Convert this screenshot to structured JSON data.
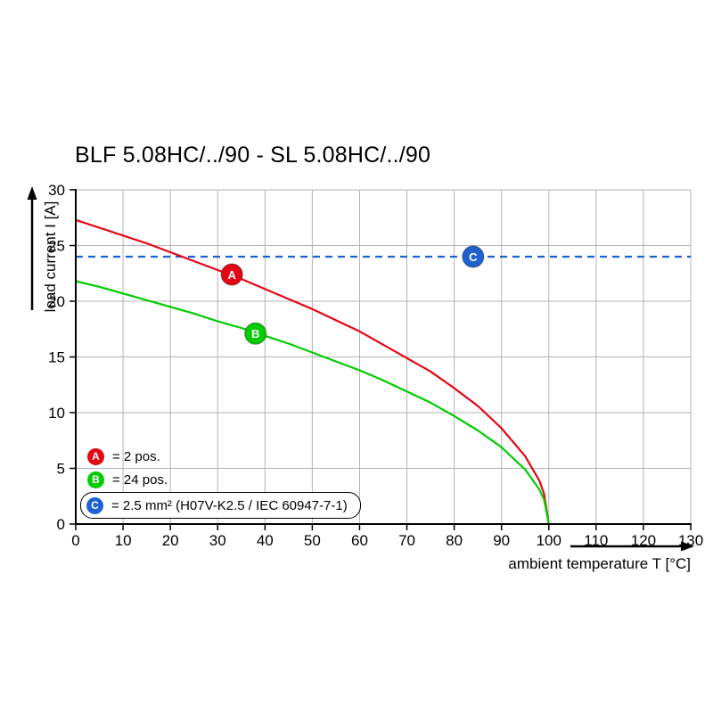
{
  "title": "BLF 5.08HC/../90 - SL 5.08HC/../90",
  "chart_data": {
    "type": "line",
    "title": "BLF 5.08HC/../90 - SL 5.08HC/../90",
    "xlabel": "ambient temperature T [°C]",
    "ylabel": "load current I [A]",
    "xlim": [
      0,
      130
    ],
    "ylim": [
      0,
      30
    ],
    "xticks": [
      0,
      10,
      20,
      30,
      40,
      50,
      60,
      70,
      80,
      90,
      100,
      110,
      120,
      130
    ],
    "yticks": [
      0,
      5,
      10,
      15,
      20,
      25,
      30
    ],
    "grid": true,
    "series": [
      {
        "id": "A",
        "label": "= 2 pos.",
        "color": "#e30613",
        "style": "solid",
        "points": [
          [
            0,
            27.3
          ],
          [
            5,
            26.6
          ],
          [
            10,
            25.9
          ],
          [
            15,
            25.2
          ],
          [
            20,
            24.4
          ],
          [
            25,
            23.6
          ],
          [
            30,
            22.8
          ],
          [
            35,
            22.0
          ],
          [
            40,
            21.1
          ],
          [
            45,
            20.2
          ],
          [
            50,
            19.3
          ],
          [
            55,
            18.3
          ],
          [
            60,
            17.3
          ],
          [
            65,
            16.1
          ],
          [
            70,
            14.9
          ],
          [
            75,
            13.7
          ],
          [
            80,
            12.2
          ],
          [
            85,
            10.6
          ],
          [
            90,
            8.6
          ],
          [
            95,
            6.1
          ],
          [
            98,
            3.9
          ],
          [
            99,
            2.7
          ],
          [
            100,
            0
          ]
        ]
      },
      {
        "id": "B",
        "label": "= 24 pos.",
        "color": "#00cc00",
        "style": "solid",
        "points": [
          [
            0,
            21.8
          ],
          [
            5,
            21.3
          ],
          [
            10,
            20.7
          ],
          [
            15,
            20.1
          ],
          [
            20,
            19.5
          ],
          [
            25,
            18.9
          ],
          [
            30,
            18.2
          ],
          [
            35,
            17.6
          ],
          [
            40,
            16.9
          ],
          [
            45,
            16.2
          ],
          [
            50,
            15.4
          ],
          [
            55,
            14.6
          ],
          [
            60,
            13.8
          ],
          [
            65,
            12.9
          ],
          [
            70,
            11.9
          ],
          [
            75,
            10.9
          ],
          [
            80,
            9.7
          ],
          [
            85,
            8.4
          ],
          [
            90,
            6.9
          ],
          [
            95,
            4.9
          ],
          [
            98,
            3.1
          ],
          [
            99,
            2.2
          ],
          [
            100,
            0
          ]
        ]
      },
      {
        "id": "C",
        "label": "= 2.5 mm² (H07V-K2.5 / IEC 60947-7-1)",
        "color": "#2060d0",
        "style": "dashed",
        "type": "hline",
        "value": 24
      }
    ],
    "markers": [
      {
        "series": "A",
        "letter": "A",
        "x": 33,
        "y": 22.4
      },
      {
        "series": "B",
        "letter": "B",
        "x": 38,
        "y": 17.1
      },
      {
        "series": "C",
        "letter": "C",
        "x": 84,
        "y": 24
      }
    ]
  },
  "legend": {
    "items": [
      {
        "letter": "A",
        "color": "#e30613",
        "text": "= 2 pos.",
        "boxed": false
      },
      {
        "letter": "B",
        "color": "#00cc00",
        "text": "= 24 pos.",
        "boxed": false
      },
      {
        "letter": "C",
        "color": "#2060d0",
        "text": "= 2.5 mm² (H07V-K2.5 / IEC 60947-7-1)",
        "boxed": true
      }
    ]
  }
}
